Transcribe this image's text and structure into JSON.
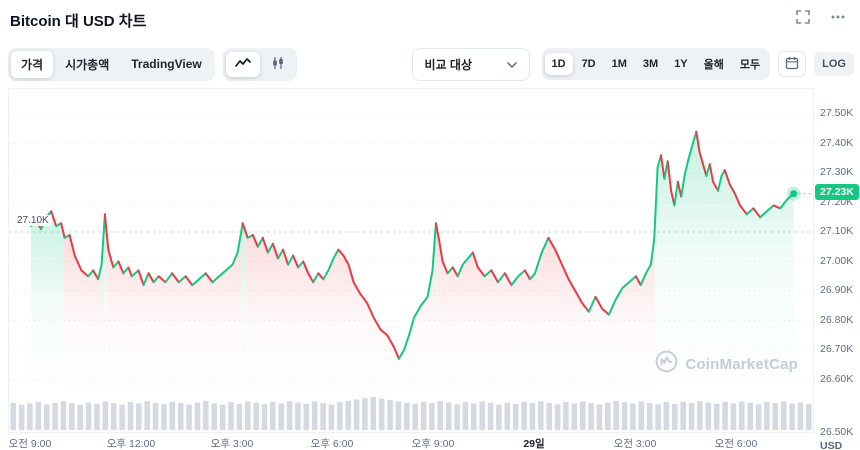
{
  "header": {
    "title": "Bitcoin 대 USD 차트"
  },
  "icons": {
    "header": [
      "fullscreen",
      "more-options"
    ],
    "chart_types": [
      "line-chart",
      "candlestick"
    ],
    "compare": "chevron-down",
    "range": "calendar",
    "watermark": "coinmarketcap-logo"
  },
  "toolbar": {
    "tabs": [
      {
        "label": "가격",
        "selected": true
      },
      {
        "label": "시가총액",
        "selected": false
      },
      {
        "label": "TradingView",
        "selected": false
      }
    ],
    "compare": {
      "label": "비교 대상"
    },
    "ranges": [
      {
        "label": "1D",
        "selected": true
      },
      {
        "label": "7D",
        "selected": false
      },
      {
        "label": "1M",
        "selected": false
      },
      {
        "label": "3M",
        "selected": false
      },
      {
        "label": "1Y",
        "selected": false
      },
      {
        "label": "올해",
        "selected": false
      },
      {
        "label": "모두",
        "selected": false
      }
    ],
    "log_label": "LOG"
  },
  "chart": {
    "current_price_label": "27.23K",
    "open_price_label": "27.10K",
    "watermark": "CoinMarketCap"
  },
  "chart_data": {
    "type": "line",
    "title": "Bitcoin 대 USD 차트",
    "ylabel": "USD",
    "ylim": [
      26.5,
      27.5
    ],
    "baseline": 27.1,
    "current": 27.23,
    "up_color": "#16c784",
    "down_color": "#ea3943",
    "x_unit": "hours from 오전 9:00",
    "price_unit": "K USD",
    "y_ticks": [
      "27.50K",
      "27.40K",
      "27.30K",
      "27.20K",
      "27.10K",
      "27.00K",
      "26.90K",
      "26.80K",
      "26.70K",
      "26.60K",
      "26.50K"
    ],
    "x_ticks": [
      {
        "label": "오전 9:00",
        "t": 0
      },
      {
        "label": "오후 12:00",
        "t": 3
      },
      {
        "label": "오후 3:00",
        "t": 6
      },
      {
        "label": "오후 6:00",
        "t": 9
      },
      {
        "label": "오후 9:00",
        "t": 12
      },
      {
        "label": "29일",
        "t": 15,
        "bold": true
      },
      {
        "label": "오전 3:00",
        "t": 18
      },
      {
        "label": "오전 6:00",
        "t": 21
      }
    ],
    "points": [
      [
        0,
        27.12
      ],
      [
        0.15,
        27.14
      ],
      [
        0.3,
        27.11
      ],
      [
        0.45,
        27.15
      ],
      [
        0.6,
        27.17
      ],
      [
        0.75,
        27.12
      ],
      [
        0.9,
        27.13
      ],
      [
        1,
        27.08
      ],
      [
        1.15,
        27.09
      ],
      [
        1.3,
        27.02
      ],
      [
        1.5,
        26.97
      ],
      [
        1.7,
        26.95
      ],
      [
        1.85,
        26.97
      ],
      [
        2,
        26.94
      ],
      [
        2.1,
        26.99
      ],
      [
        2.2,
        27.16
      ],
      [
        2.3,
        27.04
      ],
      [
        2.45,
        26.98
      ],
      [
        2.6,
        27.0
      ],
      [
        2.75,
        26.96
      ],
      [
        2.9,
        26.98
      ],
      [
        3,
        26.95
      ],
      [
        3.2,
        26.97
      ],
      [
        3.35,
        26.92
      ],
      [
        3.5,
        26.96
      ],
      [
        3.65,
        26.93
      ],
      [
        3.8,
        26.95
      ],
      [
        4,
        26.93
      ],
      [
        4.2,
        26.96
      ],
      [
        4.4,
        26.93
      ],
      [
        4.6,
        26.95
      ],
      [
        4.8,
        26.92
      ],
      [
        5,
        26.94
      ],
      [
        5.2,
        26.96
      ],
      [
        5.4,
        26.93
      ],
      [
        5.6,
        26.95
      ],
      [
        5.8,
        26.97
      ],
      [
        6,
        26.99
      ],
      [
        6.15,
        27.03
      ],
      [
        6.3,
        27.13
      ],
      [
        6.45,
        27.08
      ],
      [
        6.6,
        27.09
      ],
      [
        6.75,
        27.05
      ],
      [
        6.9,
        27.08
      ],
      [
        7.05,
        27.03
      ],
      [
        7.2,
        27.06
      ],
      [
        7.35,
        27.01
      ],
      [
        7.5,
        27.04
      ],
      [
        7.65,
        26.99
      ],
      [
        7.8,
        27.02
      ],
      [
        7.95,
        26.98
      ],
      [
        8.1,
        27.0
      ],
      [
        8.25,
        26.96
      ],
      [
        8.4,
        26.93
      ],
      [
        8.55,
        26.96
      ],
      [
        8.7,
        26.94
      ],
      [
        8.85,
        26.97
      ],
      [
        9,
        27.01
      ],
      [
        9.15,
        27.04
      ],
      [
        9.3,
        27.02
      ],
      [
        9.45,
        26.99
      ],
      [
        9.6,
        26.93
      ],
      [
        9.8,
        26.89
      ],
      [
        10,
        26.86
      ],
      [
        10.2,
        26.81
      ],
      [
        10.4,
        26.77
      ],
      [
        10.6,
        26.75
      ],
      [
        10.8,
        26.71
      ],
      [
        10.95,
        26.67
      ],
      [
        11.1,
        26.7
      ],
      [
        11.25,
        26.75
      ],
      [
        11.4,
        26.81
      ],
      [
        11.6,
        26.85
      ],
      [
        11.8,
        26.88
      ],
      [
        11.95,
        26.97
      ],
      [
        12.05,
        27.13
      ],
      [
        12.15,
        27.07
      ],
      [
        12.25,
        27.0
      ],
      [
        12.4,
        26.96
      ],
      [
        12.55,
        26.98
      ],
      [
        12.7,
        26.95
      ],
      [
        12.85,
        26.99
      ],
      [
        13,
        27.01
      ],
      [
        13.15,
        27.03
      ],
      [
        13.3,
        26.98
      ],
      [
        13.5,
        26.95
      ],
      [
        13.7,
        26.97
      ],
      [
        13.9,
        26.93
      ],
      [
        14.1,
        26.96
      ],
      [
        14.3,
        26.92
      ],
      [
        14.5,
        26.95
      ],
      [
        14.7,
        26.97
      ],
      [
        14.85,
        26.94
      ],
      [
        15,
        26.96
      ],
      [
        15.2,
        27.03
      ],
      [
        15.4,
        27.08
      ],
      [
        15.6,
        27.04
      ],
      [
        15.8,
        26.99
      ],
      [
        16,
        26.94
      ],
      [
        16.2,
        26.9
      ],
      [
        16.4,
        26.86
      ],
      [
        16.6,
        26.83
      ],
      [
        16.8,
        26.88
      ],
      [
        17,
        26.84
      ],
      [
        17.2,
        26.82
      ],
      [
        17.4,
        26.87
      ],
      [
        17.6,
        26.91
      ],
      [
        17.8,
        26.93
      ],
      [
        18,
        26.95
      ],
      [
        18.15,
        26.92
      ],
      [
        18.3,
        26.96
      ],
      [
        18.45,
        26.99
      ],
      [
        18.55,
        27.08
      ],
      [
        18.65,
        27.32
      ],
      [
        18.75,
        27.36
      ],
      [
        18.85,
        27.28
      ],
      [
        18.95,
        27.34
      ],
      [
        19.05,
        27.24
      ],
      [
        19.15,
        27.19
      ],
      [
        19.25,
        27.27
      ],
      [
        19.35,
        27.22
      ],
      [
        19.45,
        27.29
      ],
      [
        19.55,
        27.34
      ],
      [
        19.65,
        27.38
      ],
      [
        19.8,
        27.44
      ],
      [
        19.9,
        27.37
      ],
      [
        20,
        27.33
      ],
      [
        20.1,
        27.29
      ],
      [
        20.2,
        27.33
      ],
      [
        20.3,
        27.27
      ],
      [
        20.45,
        27.24
      ],
      [
        20.55,
        27.29
      ],
      [
        20.65,
        27.31
      ],
      [
        20.8,
        27.26
      ],
      [
        20.95,
        27.23
      ],
      [
        21.1,
        27.19
      ],
      [
        21.3,
        27.16
      ],
      [
        21.5,
        27.18
      ],
      [
        21.7,
        27.15
      ],
      [
        21.9,
        27.17
      ],
      [
        22.1,
        27.19
      ],
      [
        22.3,
        27.18
      ],
      [
        22.5,
        27.21
      ],
      [
        22.7,
        27.23
      ]
    ],
    "volume_bars": [
      0.8,
      0.74,
      0.78,
      0.83,
      0.76,
      0.8,
      0.85,
      0.79,
      0.74,
      0.81,
      0.77,
      0.84,
      0.79,
      0.75,
      0.82,
      0.78,
      0.85,
      0.8,
      0.76,
      0.83,
      0.79,
      0.74,
      0.81,
      0.86,
      0.78,
      0.75,
      0.82,
      0.77,
      0.84,
      0.8,
      0.76,
      0.83,
      0.78,
      0.85,
      0.81,
      0.77,
      0.84,
      0.79,
      0.75,
      0.82,
      0.86,
      0.9,
      0.94,
      0.97,
      0.92,
      0.88,
      0.84,
      0.8,
      0.77,
      0.83,
      0.79,
      0.85,
      0.81,
      0.76,
      0.82,
      0.78,
      0.84,
      0.8,
      0.75,
      0.81,
      0.77,
      0.83,
      0.79,
      0.85,
      0.8,
      0.76,
      0.82,
      0.78,
      0.84,
      0.79,
      0.75,
      0.81,
      0.86,
      0.82,
      0.78,
      0.84,
      0.8,
      0.76,
      0.82,
      0.77,
      0.83,
      0.79,
      0.85,
      0.81,
      0.77,
      0.83,
      0.78,
      0.84,
      0.8,
      0.76,
      0.82,
      0.79,
      0.84,
      0.78,
      0.81,
      0.77
    ]
  }
}
